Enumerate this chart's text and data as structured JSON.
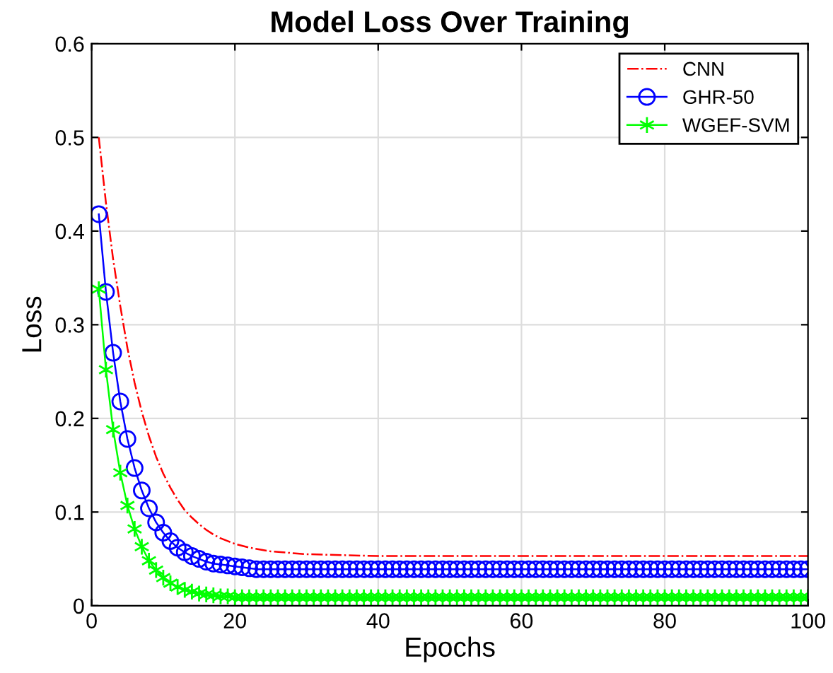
{
  "chart_data": {
    "type": "line",
    "title": "Model Loss Over Training",
    "xlabel": "Epochs",
    "ylabel": "Loss",
    "xlim": [
      0,
      100
    ],
    "ylim": [
      0,
      0.6
    ],
    "xticks": [
      0,
      20,
      40,
      60,
      80,
      100
    ],
    "yticks": [
      0,
      0.1,
      0.2,
      0.3,
      0.4,
      0.5,
      0.6
    ],
    "grid": true,
    "legend": "top right",
    "series": [
      {
        "name": "CNN",
        "color": "#ff0000",
        "line_style": "dashdot",
        "marker": "none",
        "x": [
          1,
          2,
          3,
          4,
          5,
          6,
          7,
          8,
          9,
          10,
          11,
          12,
          13,
          14,
          15,
          16,
          17,
          18,
          19,
          20,
          22,
          25,
          30,
          40,
          60,
          80,
          100
        ],
        "values": [
          0.5,
          0.43,
          0.37,
          0.32,
          0.275,
          0.238,
          0.207,
          0.181,
          0.159,
          0.141,
          0.126,
          0.113,
          0.102,
          0.094,
          0.087,
          0.081,
          0.076,
          0.072,
          0.069,
          0.066,
          0.062,
          0.058,
          0.055,
          0.053,
          0.053,
          0.053,
          0.053
        ]
      },
      {
        "name": "GHR-50",
        "color": "#0000ff",
        "line_style": "solid",
        "marker": "circle",
        "x": [
          1,
          2,
          3,
          4,
          5,
          6,
          7,
          8,
          9,
          10,
          11,
          12,
          13,
          14,
          15,
          16,
          17,
          18,
          19,
          20,
          21,
          22,
          23,
          24,
          25,
          26,
          27,
          28,
          29,
          30,
          31,
          32,
          33,
          34,
          35,
          36,
          37,
          38,
          39,
          40,
          41,
          42,
          43,
          44,
          45,
          46,
          47,
          48,
          49,
          50,
          51,
          52,
          53,
          54,
          55,
          56,
          57,
          58,
          59,
          60,
          61,
          62,
          63,
          64,
          65,
          66,
          67,
          68,
          69,
          70,
          71,
          72,
          73,
          74,
          75,
          76,
          77,
          78,
          79,
          80,
          81,
          82,
          83,
          84,
          85,
          86,
          87,
          88,
          89,
          90,
          91,
          92,
          93,
          94,
          95,
          96,
          97,
          98,
          99,
          100
        ],
        "values": [
          0.418,
          0.335,
          0.27,
          0.218,
          0.178,
          0.147,
          0.123,
          0.104,
          0.089,
          0.078,
          0.069,
          0.062,
          0.057,
          0.053,
          0.05,
          0.047,
          0.045,
          0.044,
          0.043,
          0.042,
          0.041,
          0.04,
          0.039,
          0.039,
          0.039,
          0.039,
          0.039,
          0.039,
          0.039,
          0.039,
          0.039,
          0.039,
          0.039,
          0.039,
          0.039,
          0.039,
          0.039,
          0.039,
          0.039,
          0.039,
          0.039,
          0.039,
          0.039,
          0.039,
          0.039,
          0.039,
          0.039,
          0.039,
          0.039,
          0.039,
          0.039,
          0.039,
          0.039,
          0.039,
          0.039,
          0.039,
          0.039,
          0.039,
          0.039,
          0.039,
          0.039,
          0.039,
          0.039,
          0.039,
          0.039,
          0.039,
          0.039,
          0.039,
          0.039,
          0.039,
          0.039,
          0.039,
          0.039,
          0.039,
          0.039,
          0.039,
          0.039,
          0.039,
          0.039,
          0.039,
          0.039,
          0.039,
          0.039,
          0.039,
          0.039,
          0.039,
          0.039,
          0.039,
          0.039,
          0.039,
          0.039,
          0.039,
          0.039,
          0.039,
          0.039,
          0.039,
          0.039,
          0.039,
          0.039,
          0.039
        ]
      },
      {
        "name": "WGEF-SVM",
        "color": "#00ff00",
        "line_style": "solid",
        "marker": "cross",
        "x": [
          1,
          2,
          3,
          4,
          5,
          6,
          7,
          8,
          9,
          10,
          11,
          12,
          13,
          14,
          15,
          16,
          17,
          18,
          19,
          20,
          21,
          22,
          23,
          24,
          25,
          26,
          27,
          28,
          29,
          30,
          31,
          32,
          33,
          34,
          35,
          36,
          37,
          38,
          39,
          40,
          41,
          42,
          43,
          44,
          45,
          46,
          47,
          48,
          49,
          50,
          51,
          52,
          53,
          54,
          55,
          56,
          57,
          58,
          59,
          60,
          61,
          62,
          63,
          64,
          65,
          66,
          67,
          68,
          69,
          70,
          71,
          72,
          73,
          74,
          75,
          76,
          77,
          78,
          79,
          80,
          81,
          82,
          83,
          84,
          85,
          86,
          87,
          88,
          89,
          90,
          91,
          92,
          93,
          94,
          95,
          96,
          97,
          98,
          99,
          100
        ],
        "values": [
          0.338,
          0.252,
          0.188,
          0.142,
          0.107,
          0.082,
          0.063,
          0.048,
          0.038,
          0.03,
          0.024,
          0.02,
          0.017,
          0.015,
          0.013,
          0.012,
          0.011,
          0.01,
          0.01,
          0.009,
          0.009,
          0.009,
          0.009,
          0.009,
          0.009,
          0.009,
          0.009,
          0.009,
          0.009,
          0.009,
          0.009,
          0.009,
          0.009,
          0.009,
          0.009,
          0.009,
          0.009,
          0.009,
          0.009,
          0.009,
          0.009,
          0.009,
          0.009,
          0.009,
          0.009,
          0.009,
          0.009,
          0.009,
          0.009,
          0.009,
          0.009,
          0.009,
          0.009,
          0.009,
          0.009,
          0.009,
          0.009,
          0.009,
          0.009,
          0.009,
          0.009,
          0.009,
          0.009,
          0.009,
          0.009,
          0.009,
          0.009,
          0.009,
          0.009,
          0.009,
          0.009,
          0.009,
          0.009,
          0.009,
          0.009,
          0.009,
          0.009,
          0.009,
          0.009,
          0.009,
          0.009,
          0.009,
          0.009,
          0.009,
          0.009,
          0.009,
          0.009,
          0.009,
          0.009,
          0.009,
          0.009,
          0.009,
          0.009,
          0.009,
          0.009,
          0.009,
          0.009,
          0.009,
          0.009,
          0.009
        ]
      }
    ]
  }
}
